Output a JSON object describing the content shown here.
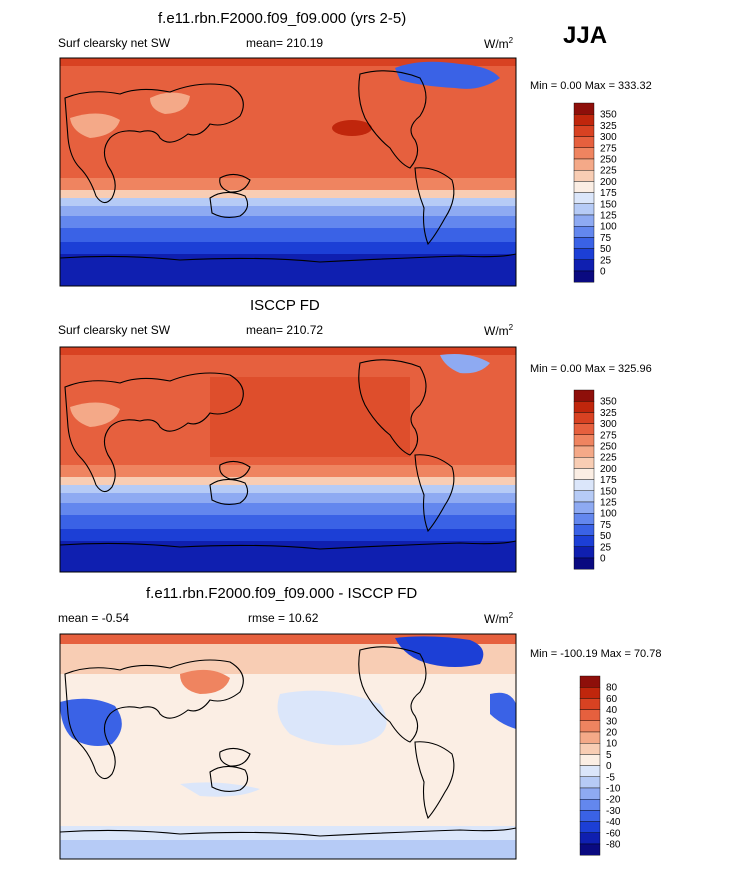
{
  "season": "JJA",
  "colors": {
    "abs_scale": [
      "#0a0a80",
      "#0f1fb0",
      "#1c3fd6",
      "#3a62e6",
      "#6387ee",
      "#8eaaf2",
      "#b6cbf6",
      "#dbe6fa",
      "#fbeee4",
      "#f8cdb4",
      "#f4a988",
      "#ef8460",
      "#e6603e",
      "#d84222",
      "#c0260c",
      "#8e0f0a"
    ],
    "diff_scale": [
      "#0a0a80",
      "#0f1fb0",
      "#1c3fd6",
      "#3a62e6",
      "#6387ee",
      "#8eaaf2",
      "#b6cbf6",
      "#dbe6fa",
      "#fbeee4",
      "#f8cdb4",
      "#f4a988",
      "#ef8460",
      "#e6603e",
      "#d84222",
      "#c0260c",
      "#8e0f0a"
    ]
  },
  "panels": [
    {
      "title": "f.e11.rbn.F2000.f09_f09.000 (yrs 2-5)",
      "left_label": "Surf clearsky net SW",
      "center_label": "mean= 210.19",
      "units": "W/m",
      "units_sup": "2",
      "minmax": "Min =   0.00 Max = 333.32",
      "colorbar_labels": [
        "350",
        "325",
        "300",
        "275",
        "250",
        "225",
        "200",
        "175",
        "150",
        "125",
        "100",
        "75",
        "50",
        "25",
        "0"
      ]
    },
    {
      "title": "ISCCP FD",
      "left_label": "Surf clearsky net SW",
      "center_label": "mean= 210.72",
      "units": "W/m",
      "units_sup": "2",
      "minmax": "Min =   0.00 Max = 325.96",
      "colorbar_labels": [
        "350",
        "325",
        "300",
        "275",
        "250",
        "225",
        "200",
        "175",
        "150",
        "125",
        "100",
        "75",
        "50",
        "25",
        "0"
      ]
    },
    {
      "title": "f.e11.rbn.F2000.f09_f09.000 - ISCCP FD",
      "left_label": "mean =  -0.54",
      "center_label": "rmse =  10.62",
      "units": "W/m",
      "units_sup": "2",
      "minmax": "Min = -100.19 Max =  70.78",
      "colorbar_labels": [
        "80",
        "60",
        "40",
        "30",
        "20",
        "10",
        "5",
        "0",
        "-5",
        "-10",
        "-20",
        "-30",
        "-40",
        "-60",
        "-80"
      ]
    }
  ]
}
